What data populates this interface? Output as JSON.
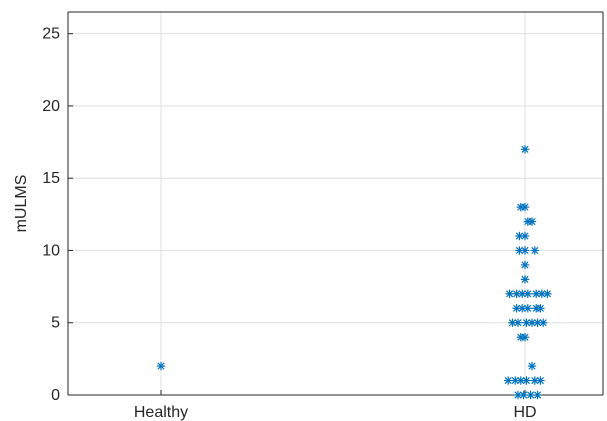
{
  "chart_data": {
    "type": "scatter",
    "categories": [
      "Healthy",
      "HD"
    ],
    "ylabel": "mULMS",
    "xlabel": "",
    "title": "",
    "ylim": [
      0,
      26.5
    ],
    "yticks": [
      0,
      5,
      10,
      15,
      20,
      25
    ],
    "grid": true,
    "marker": "asterisk",
    "color": "#0072BD",
    "series": [
      {
        "points": [
          {
            "category": "Healthy",
            "offset": 0,
            "y": 2
          },
          {
            "category": "HD",
            "offset": -0.12,
            "y": 1
          },
          {
            "category": "HD",
            "offset": -0.07,
            "y": 1
          },
          {
            "category": "HD",
            "offset": -0.03,
            "y": 1
          },
          {
            "category": "HD",
            "offset": 0.01,
            "y": 1
          },
          {
            "category": "HD",
            "offset": 0.07,
            "y": 1
          },
          {
            "category": "HD",
            "offset": 0.11,
            "y": 1
          },
          {
            "category": "HD",
            "offset": -0.05,
            "y": 0
          },
          {
            "category": "HD",
            "offset": -0.01,
            "y": 0
          },
          {
            "category": "HD",
            "offset": 0.04,
            "y": 0
          },
          {
            "category": "HD",
            "offset": 0.09,
            "y": 0
          },
          {
            "category": "HD",
            "offset": 0.05,
            "y": 2
          },
          {
            "category": "HD",
            "offset": -0.03,
            "y": 4
          },
          {
            "category": "HD",
            "offset": 0.0,
            "y": 4
          },
          {
            "category": "HD",
            "offset": -0.09,
            "y": 5
          },
          {
            "category": "HD",
            "offset": -0.05,
            "y": 5
          },
          {
            "category": "HD",
            "offset": 0.01,
            "y": 5
          },
          {
            "category": "HD",
            "offset": 0.05,
            "y": 5
          },
          {
            "category": "HD",
            "offset": 0.09,
            "y": 5
          },
          {
            "category": "HD",
            "offset": 0.13,
            "y": 5
          },
          {
            "category": "HD",
            "offset": -0.06,
            "y": 6
          },
          {
            "category": "HD",
            "offset": -0.02,
            "y": 6
          },
          {
            "category": "HD",
            "offset": 0.02,
            "y": 6
          },
          {
            "category": "HD",
            "offset": 0.08,
            "y": 6
          },
          {
            "category": "HD",
            "offset": 0.11,
            "y": 6
          },
          {
            "category": "HD",
            "offset": -0.11,
            "y": 7
          },
          {
            "category": "HD",
            "offset": -0.06,
            "y": 7
          },
          {
            "category": "HD",
            "offset": -0.02,
            "y": 7
          },
          {
            "category": "HD",
            "offset": 0.02,
            "y": 7
          },
          {
            "category": "HD",
            "offset": 0.08,
            "y": 7
          },
          {
            "category": "HD",
            "offset": 0.12,
            "y": 7
          },
          {
            "category": "HD",
            "offset": 0.16,
            "y": 7
          },
          {
            "category": "HD",
            "offset": 0.0,
            "y": 8
          },
          {
            "category": "HD",
            "offset": 0.0,
            "y": 9
          },
          {
            "category": "HD",
            "offset": -0.04,
            "y": 10
          },
          {
            "category": "HD",
            "offset": 0.0,
            "y": 10
          },
          {
            "category": "HD",
            "offset": 0.07,
            "y": 10
          },
          {
            "category": "HD",
            "offset": -0.04,
            "y": 11
          },
          {
            "category": "HD",
            "offset": 0.0,
            "y": 11
          },
          {
            "category": "HD",
            "offset": 0.02,
            "y": 12
          },
          {
            "category": "HD",
            "offset": 0.05,
            "y": 12
          },
          {
            "category": "HD",
            "offset": -0.03,
            "y": 13
          },
          {
            "category": "HD",
            "offset": 0.0,
            "y": 13
          },
          {
            "category": "HD",
            "offset": 0.0,
            "y": 17
          }
        ]
      }
    ]
  }
}
